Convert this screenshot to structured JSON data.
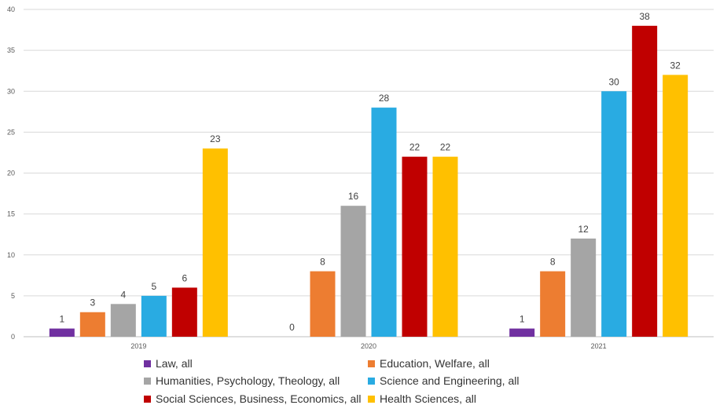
{
  "chart_data": {
    "type": "bar",
    "categories": [
      "2019",
      "2020",
      "2021"
    ],
    "series": [
      {
        "name": "Law, all",
        "color": "#7030a0",
        "values": [
          1,
          0,
          1
        ]
      },
      {
        "name": "Education, Welfare, all",
        "color": "#ed7d31",
        "values": [
          3,
          8,
          8
        ]
      },
      {
        "name": "Humanities, Psychology, Theology, all",
        "color": "#a5a5a5",
        "values": [
          4,
          16,
          12
        ]
      },
      {
        "name": "Science and Engineering, all",
        "color": "#29abe2",
        "values": [
          5,
          28,
          30
        ]
      },
      {
        "name": "Social Sciences, Business, Economics, all",
        "color": "#c00000",
        "values": [
          6,
          22,
          38
        ]
      },
      {
        "name": "Health Sciences, all",
        "color": "#ffc000",
        "values": [
          23,
          22,
          32
        ]
      }
    ],
    "yticks": [
      "0",
      "5",
      "10",
      "15",
      "20",
      "25",
      "30",
      "35",
      "40"
    ],
    "ylim": [
      0,
      40
    ],
    "grid": true,
    "legend_position": "bottom",
    "title": "",
    "xlabel": "",
    "ylabel": ""
  }
}
